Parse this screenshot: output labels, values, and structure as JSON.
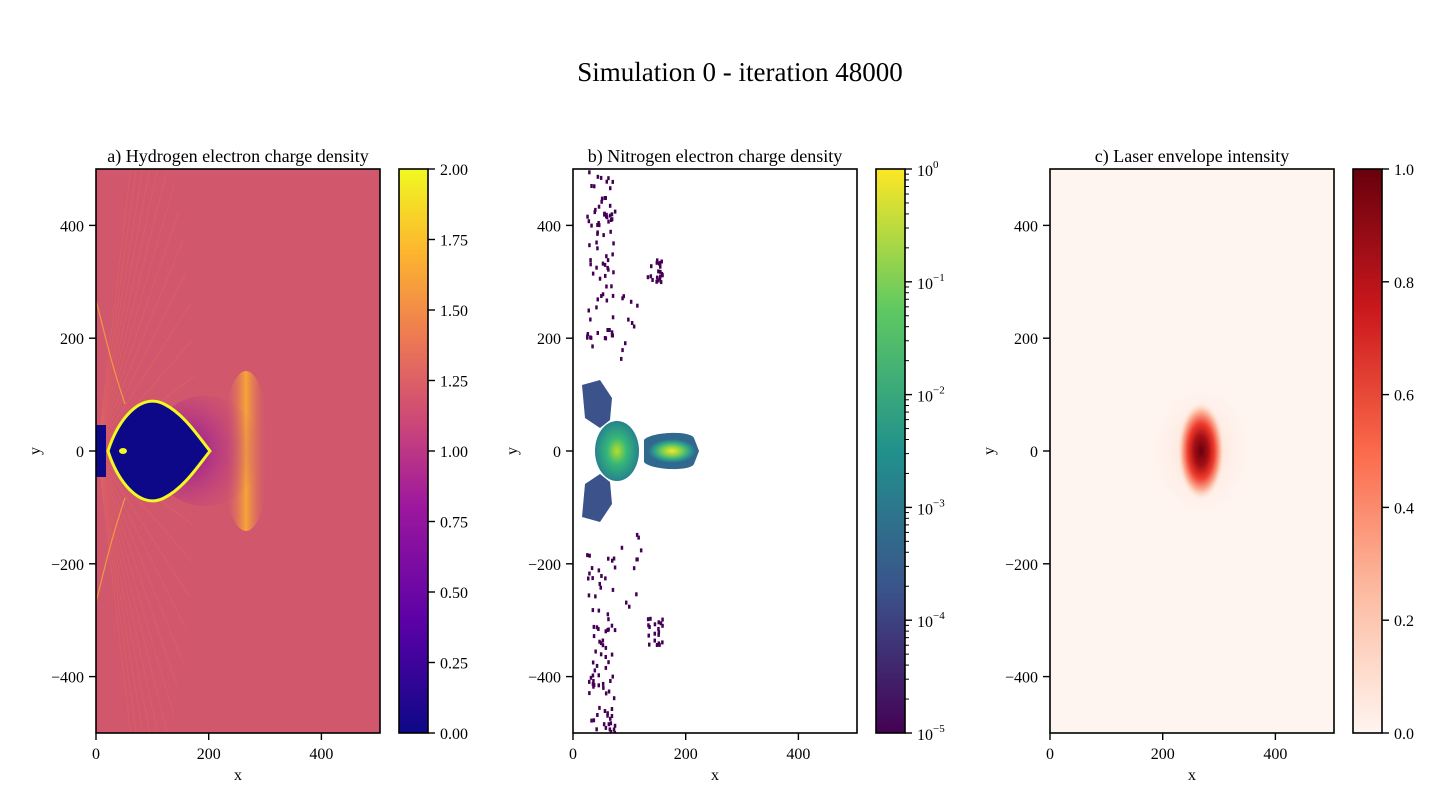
{
  "suptitle": "Simulation 0 - iteration 48000",
  "chart_data": [
    {
      "type": "heatmap",
      "title": "a) Hydrogen electron charge density",
      "xlabel": "x",
      "ylabel": "y",
      "xlim": [
        0,
        504
      ],
      "ylim": [
        -500,
        500
      ],
      "xticks": [
        0,
        200,
        400
      ],
      "yticks": [
        -400,
        -200,
        0,
        200,
        400
      ],
      "colormap": "plasma",
      "colorbar": {
        "scale": "linear",
        "range": [
          0.0,
          2.0
        ],
        "ticks": [
          "0.00",
          "0.25",
          "0.50",
          "0.75",
          "1.00",
          "1.25",
          "1.50",
          "1.75",
          "2.00"
        ]
      },
      "features": {
        "background_value": 1.0,
        "cavity": {
          "x_range": [
            20,
            205
          ],
          "y_half_width": 80,
          "value": 0.0
        },
        "sheath_value": 2.0,
        "wake_front_x": 280
      }
    },
    {
      "type": "heatmap",
      "title": "b) Nitrogen electron charge density",
      "xlabel": "x",
      "ylabel": "y",
      "xlim": [
        0,
        504
      ],
      "ylim": [
        -500,
        500
      ],
      "xticks": [
        0,
        200,
        400
      ],
      "yticks": [
        -400,
        -200,
        0,
        200,
        400
      ],
      "colormap": "viridis",
      "colorbar": {
        "scale": "log",
        "range": [
          1e-05,
          1
        ],
        "ticks": [
          "10^-5",
          "10^-4",
          "10^-3",
          "10^-2",
          "10^-1",
          "10^0"
        ]
      },
      "features": {
        "on_axis_bunch": {
          "x_range": [
            130,
            220
          ],
          "y_half_width": 25,
          "peak_value": 1.0
        },
        "injection_region": {
          "x_range": [
            15,
            110
          ],
          "y_half_width": 120
        }
      }
    },
    {
      "type": "heatmap",
      "title": "c) Laser envelope intensity",
      "xlabel": "x",
      "ylabel": "y",
      "xlim": [
        0,
        504
      ],
      "ylim": [
        -500,
        500
      ],
      "xticks": [
        0,
        200,
        400
      ],
      "yticks": [
        -400,
        -200,
        0,
        200,
        400
      ],
      "colormap": "Reds",
      "colorbar": {
        "scale": "linear",
        "range": [
          0.0,
          1.0
        ],
        "ticks": [
          "0.0",
          "0.2",
          "0.4",
          "0.6",
          "0.8",
          "1.0"
        ]
      },
      "features": {
        "laser_peak": {
          "x": 270,
          "y": 0,
          "value": 1.0,
          "sigma_x": 18,
          "sigma_y": 35
        }
      }
    }
  ],
  "colors": {
    "plasma": [
      "#0d0887",
      "#6a00a8",
      "#b12a90",
      "#e16462",
      "#fca636",
      "#f0f921"
    ],
    "viridis": [
      "#440154",
      "#3b528b",
      "#21918c",
      "#5ec962",
      "#fde725"
    ],
    "reds": [
      "#fff5f0",
      "#fcbba1",
      "#fb6a4a",
      "#cb181d",
      "#67000d"
    ]
  }
}
